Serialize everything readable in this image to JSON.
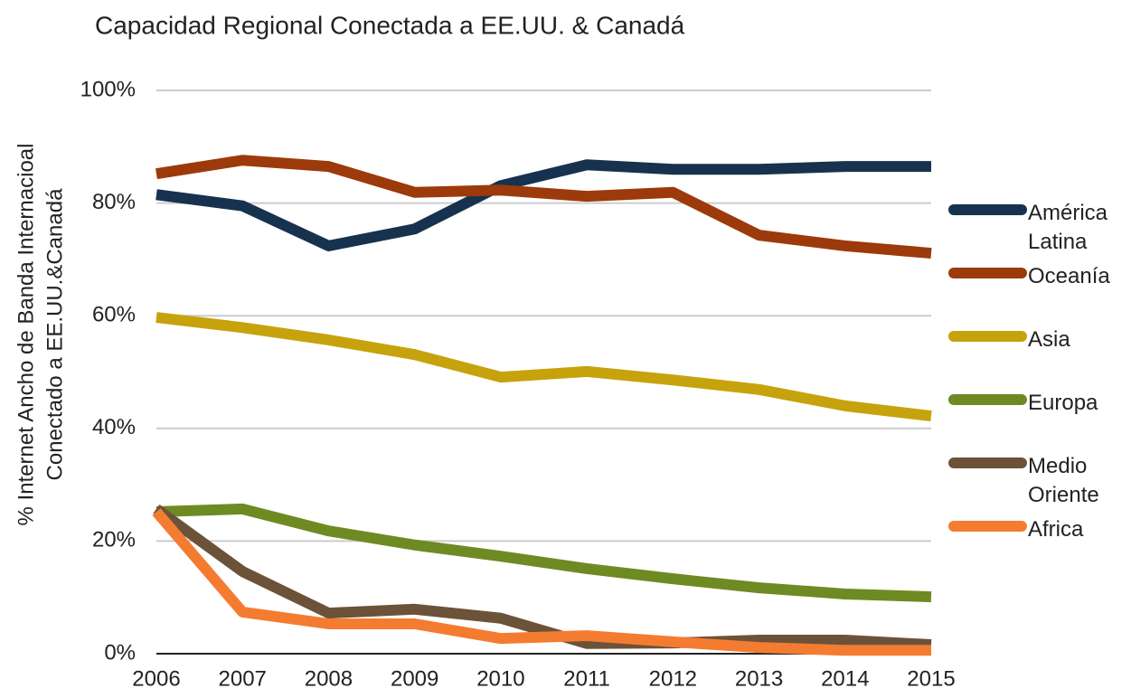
{
  "chart_data": {
    "type": "line",
    "title": "Capacidad Regional Conectada a EE.UU. & Canadá",
    "ylabel": [
      "% Internet Ancho de Banda Internacioal",
      "Conectado a EE.UU.&Canadá"
    ],
    "categories": [
      "2006",
      "2007",
      "2008",
      "2009",
      "2010",
      "2011",
      "2012",
      "2013",
      "2014",
      "2015"
    ],
    "ylim": [
      0,
      100
    ],
    "yticks": [
      {
        "value": 0,
        "label": "0%"
      },
      {
        "value": 20,
        "label": "20%"
      },
      {
        "value": 40,
        "label": "40%"
      },
      {
        "value": 60,
        "label": "60%"
      },
      {
        "value": 80,
        "label": "80%"
      },
      {
        "value": 100,
        "label": "100%"
      }
    ],
    "grid": true,
    "legend": "right",
    "series": [
      {
        "name": "América Latina",
        "color": "#17324f",
        "values": [
          81.5,
          79.5,
          72.4,
          75.4,
          83.1,
          86.8,
          86,
          86,
          86.5,
          86.5
        ]
      },
      {
        "name": "Oceanía",
        "color": "#9c3a0b",
        "values": [
          85.2,
          87.6,
          86.5,
          81.9,
          82.3,
          81.2,
          81.9,
          74.3,
          72.4,
          71.1
        ]
      },
      {
        "name": "Asia",
        "color": "#c6a30c",
        "values": [
          59.7,
          57.9,
          55.7,
          53.1,
          49.1,
          50.1,
          48.6,
          46.9,
          44,
          42.2
        ]
      },
      {
        "name": "Europa",
        "color": "#6e8a23",
        "values": [
          25.2,
          25.7,
          21.8,
          19.3,
          17.3,
          15.1,
          13.3,
          11.7,
          10.6,
          10.1
        ]
      },
      {
        "name": "Medio Oriente",
        "color": "#6c5239",
        "values": [
          25.7,
          14.6,
          7.2,
          7.9,
          6.3,
          1.8,
          1.9,
          2.4,
          2.4,
          1.6
        ]
      },
      {
        "name": "Africa",
        "color": "#f47c30",
        "values": [
          25.2,
          7.4,
          5.3,
          5.3,
          2.7,
          3.2,
          2.1,
          1.1,
          0.6,
          0.6
        ]
      }
    ]
  }
}
